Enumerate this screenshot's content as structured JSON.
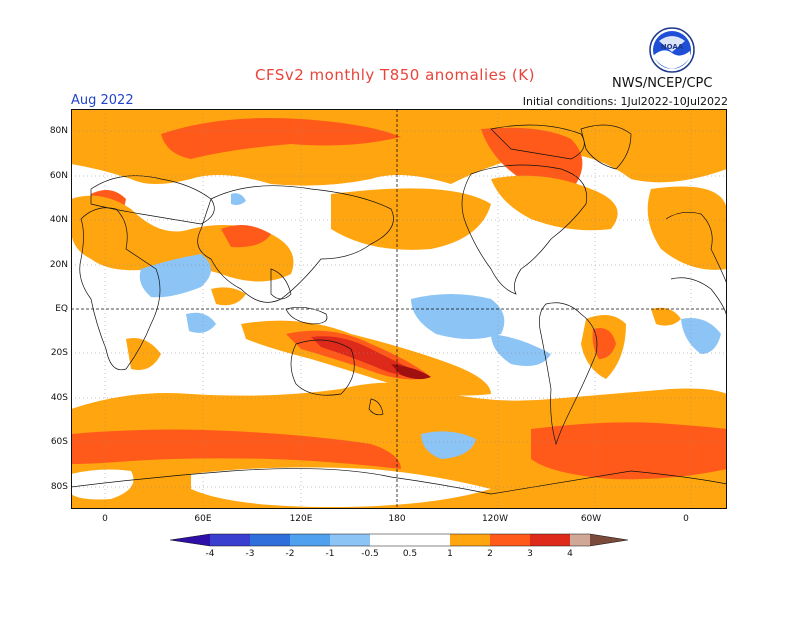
{
  "title": "CFSv2 monthly T850 anomalies (K)",
  "agency": "NWS/NCEP/CPC",
  "period": "Aug 2022",
  "initial_conditions": "Initial conditions: 1Jul2022-10Jul2022",
  "logo_text": "NOAA",
  "lat_labels": [
    "80N",
    "60N",
    "40N",
    "20N",
    "EQ",
    "20S",
    "40S",
    "60S",
    "80S"
  ],
  "lon_labels": [
    "0",
    "60E",
    "120E",
    "180",
    "120W",
    "60W",
    "0"
  ],
  "colorbar": {
    "labels": [
      "-4",
      "-3",
      "-2",
      "-1",
      "-0.5",
      "0.5",
      "1",
      "2",
      "3",
      "4"
    ],
    "colors": {
      "lt_m4": "#2e0fa8",
      "m4_m3": "#3a3fcf",
      "m3_m2": "#2f6fdc",
      "m2_m1": "#4fa0ee",
      "m1_m05": "#8cc4f5",
      "neutral": "#ffffff",
      "p05_p1": "#ffa510",
      "p1_p2": "#ff5a1a",
      "p2_p3": "#dd2a1a",
      "p3_p4": "#a01010",
      "p4_p5": "#d0a898",
      "gt_p5": "#7a4a3a"
    }
  }
}
